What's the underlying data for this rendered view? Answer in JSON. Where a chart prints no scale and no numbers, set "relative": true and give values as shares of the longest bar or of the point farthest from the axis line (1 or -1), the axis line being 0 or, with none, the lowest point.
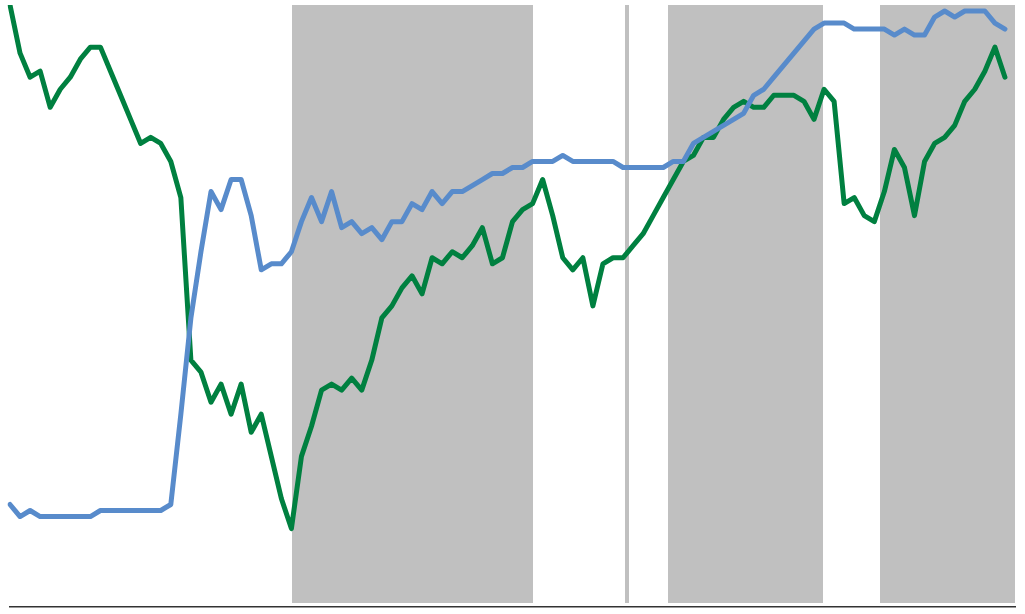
{
  "chart_data": {
    "type": "line",
    "relative": true,
    "grid": false,
    "legend": false,
    "marker": "none",
    "line_style": "solid",
    "categories": [
      null,
      null,
      null,
      null,
      null,
      null,
      null,
      null,
      null,
      null,
      null,
      null,
      null,
      null,
      null,
      null,
      null,
      null,
      null,
      null,
      null,
      null,
      null,
      null,
      null,
      null,
      null,
      null,
      null,
      null,
      null,
      null,
      null,
      null,
      null,
      null,
      null,
      null,
      null,
      null,
      null,
      null,
      null,
      null,
      null,
      null,
      null,
      null,
      null,
      null,
      null,
      null,
      null,
      null,
      null,
      null,
      null,
      null,
      null,
      null,
      null,
      null,
      null,
      null,
      null,
      null,
      null,
      null,
      null,
      null,
      null,
      null,
      null,
      null,
      null,
      null,
      null,
      null,
      null,
      null,
      null,
      null,
      null,
      null,
      null,
      null,
      null,
      null,
      null,
      null,
      null,
      null,
      null,
      null,
      null,
      null,
      null,
      null,
      null,
      null,
      null
    ],
    "series": [
      {
        "color": "#588bcb",
        "values": [
          0.17,
          0.15,
          0.16,
          0.15,
          0.15,
          0.15,
          0.15,
          0.15,
          0.15,
          0.16,
          0.16,
          0.16,
          0.16,
          0.16,
          0.16,
          0.16,
          0.17,
          0.32,
          0.48,
          0.59,
          0.69,
          0.66,
          0.71,
          0.71,
          0.65,
          0.56,
          0.57,
          0.57,
          0.59,
          0.64,
          0.68,
          0.64,
          0.69,
          0.63,
          0.64,
          0.62,
          0.63,
          0.61,
          0.64,
          0.64,
          0.67,
          0.66,
          0.69,
          0.67,
          0.69,
          0.69,
          0.7,
          0.71,
          0.72,
          0.72,
          0.73,
          0.73,
          0.74,
          0.74,
          0.74,
          0.75,
          0.74,
          0.74,
          0.74,
          0.74,
          0.74,
          0.73,
          0.73,
          0.73,
          0.73,
          0.73,
          0.74,
          0.74,
          0.77,
          0.78,
          0.79,
          0.8,
          0.81,
          0.82,
          0.85,
          0.86,
          0.88,
          0.9,
          0.92,
          0.94,
          0.96,
          0.97,
          0.97,
          0.97,
          0.96,
          0.96,
          0.96,
          0.96,
          0.95,
          0.96,
          0.95,
          0.95,
          0.98,
          0.99,
          0.98,
          0.99,
          0.99,
          0.99,
          0.97,
          0.96,
          null
        ]
      },
      {
        "color": "#008040",
        "values": [
          1,
          0.92,
          0.88,
          0.89,
          0.83,
          0.86,
          0.88,
          0.91,
          0.93,
          0.93,
          0.89,
          0.85,
          0.81,
          0.77,
          0.78,
          0.77,
          0.74,
          0.68,
          0.41,
          0.39,
          0.34,
          0.37,
          0.32,
          0.37,
          0.29,
          0.32,
          0.25,
          0.18,
          0.13,
          0.25,
          0.3,
          0.36,
          0.37,
          0.36,
          0.38,
          0.36,
          0.41,
          0.48,
          0.5,
          0.53,
          0.55,
          0.52,
          0.58,
          0.57,
          0.59,
          0.58,
          0.6,
          0.63,
          0.57,
          0.58,
          0.64,
          0.66,
          0.67,
          0.71,
          0.65,
          0.58,
          0.56,
          0.58,
          0.5,
          0.57,
          0.58,
          0.58,
          0.6,
          0.62,
          0.65,
          0.68,
          0.71,
          0.74,
          0.75,
          0.78,
          0.78,
          0.81,
          0.83,
          0.84,
          0.83,
          0.83,
          0.85,
          0.85,
          0.85,
          0.84,
          0.81,
          0.86,
          0.84,
          0.67,
          0.68,
          0.65,
          0.64,
          0.69,
          0.76,
          0.73,
          0.65,
          0.74,
          0.77,
          0.78,
          0.8,
          0.84,
          0.86,
          0.89,
          0.93,
          0.88,
          null
        ]
      }
    ]
  }
}
